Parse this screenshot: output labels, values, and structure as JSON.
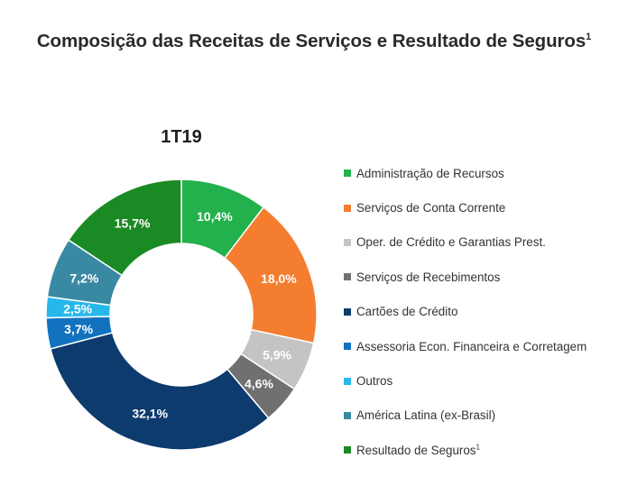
{
  "title": "Composição das Receitas de Serviços e Resultado de Seguros",
  "title_superscript": "1",
  "chart_data": {
    "type": "donut",
    "title": "1T19",
    "legend_position": "right",
    "series": [
      {
        "name": "Administração de Recursos",
        "value": 10.4,
        "label": "10,4%",
        "color": "#22b14c",
        "label_color": "#ffffff"
      },
      {
        "name": "Serviços de Conta Corrente",
        "value": 18.0,
        "label": "18,0%",
        "color": "#f47d30",
        "label_color": "#ffffff"
      },
      {
        "name": "Oper. de Crédito e Garantias Prest.",
        "value": 5.9,
        "label": "5,9%",
        "color": "#c4c4c4",
        "label_color": "#ffffff"
      },
      {
        "name": "Serviços de Recebimentos",
        "value": 4.6,
        "label": "4,6%",
        "color": "#707070",
        "label_color": "#ffffff"
      },
      {
        "name": "Cartões de Crédito",
        "value": 32.1,
        "label": "32,1%",
        "color": "#0d3b6e",
        "label_color": "#ffffff"
      },
      {
        "name": "Assessoria Econ. Financeira e Corretagem",
        "value": 3.7,
        "label": "3,7%",
        "color": "#1272bf",
        "label_color": "#ffffff"
      },
      {
        "name": "Outros",
        "value": 2.5,
        "label": "2,5%",
        "color": "#27b8ea",
        "label_color": "#ffffff"
      },
      {
        "name": "América Latina (ex-Brasil)",
        "value": 7.2,
        "label": "7,2%",
        "color": "#3a89a3",
        "label_color": "#ffffff"
      },
      {
        "name": "Resultado de Seguros",
        "superscript": "1",
        "value": 15.7,
        "label": "15,7%",
        "color": "#1a8a24",
        "label_color": "#ffffff"
      }
    ]
  }
}
